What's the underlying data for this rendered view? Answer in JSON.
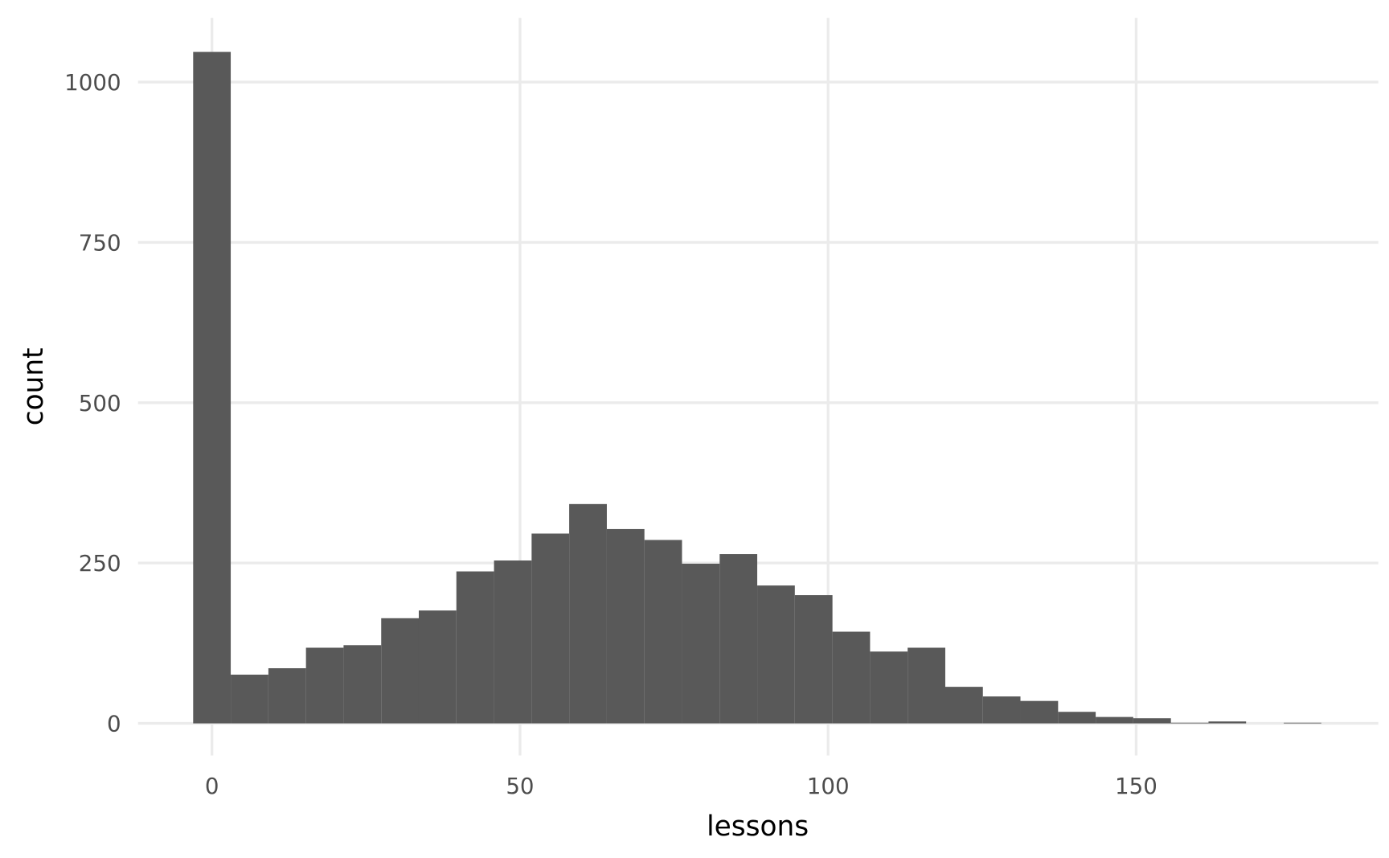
{
  "chart_data": {
    "type": "histogram",
    "xlabel": "lessons",
    "ylabel": "count",
    "bins": [
      -3.05,
      3.05,
      9.16,
      15.26,
      21.36,
      27.47,
      33.57,
      39.67,
      45.78,
      51.88,
      57.98,
      64.09,
      70.19,
      76.29,
      82.4,
      88.5,
      94.6,
      100.71,
      106.81,
      112.91,
      119.02,
      125.12,
      131.22,
      137.33,
      143.43,
      149.53,
      155.64,
      161.74,
      167.84,
      173.95,
      180.05
    ],
    "counts": [
      1047,
      76,
      86,
      118,
      122,
      164,
      176,
      237,
      254,
      296,
      342,
      303,
      286,
      249,
      264,
      215,
      200,
      143,
      112,
      118,
      57,
      42,
      35,
      18,
      10,
      8,
      1,
      3,
      0,
      1
    ],
    "color": "#595959",
    "xlim": [
      -12,
      189.3
    ],
    "xticks": [
      0,
      50,
      100,
      150
    ],
    "ylim": [
      -50,
      1100
    ],
    "yticks": [
      0,
      250,
      500,
      750,
      1000
    ],
    "grid": true
  }
}
